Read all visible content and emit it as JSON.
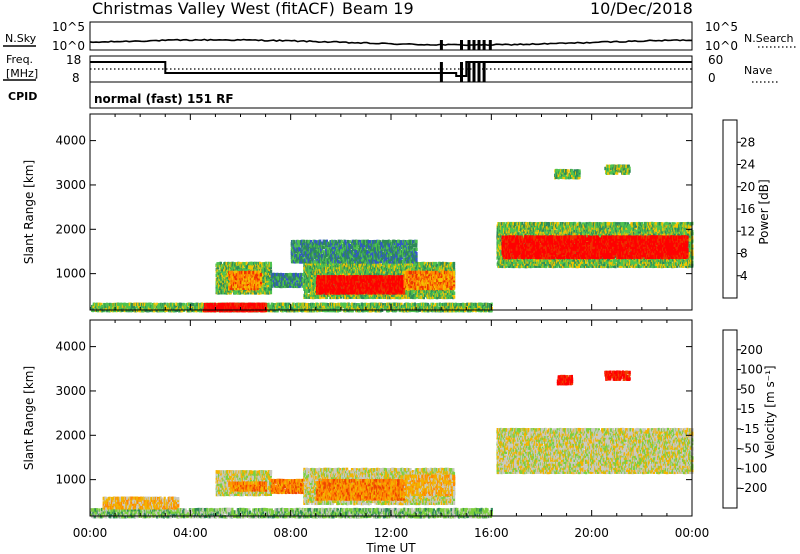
{
  "header": {
    "station": "Christmas Valley West",
    "mode": "(fitACF)",
    "beam": "Beam 19",
    "date": "10/Dec/2018"
  },
  "top_panels": {
    "nsky_label": "N.Sky",
    "nsky_ticks": [
      "10^5",
      "10^0"
    ],
    "nsearch_label": "N.Search",
    "freq_label_line1": "Freq.",
    "freq_label_line2": "[MHz]",
    "freq_ticks": [
      "18",
      "8"
    ],
    "nave_ticks": [
      "60",
      "0"
    ],
    "nave_label": "Nave",
    "cpid_label": "CPID",
    "cpid_value": "normal (fast) 151 RF"
  },
  "chart_data": [
    {
      "type": "heatmap",
      "name": "power",
      "ylabel": "Slant Range [km]",
      "yticks": [
        1000,
        2000,
        3000,
        4000
      ],
      "ylim": [
        180,
        4600
      ],
      "xlim_hours": [
        0,
        24
      ],
      "colorbar_label": "Power [dB]",
      "colorbar_ticks": [
        "4",
        "8",
        "12",
        "16",
        "20",
        "24",
        "28"
      ],
      "colorbar_colors": [
        "#0000ff",
        "#3355cc",
        "#2f8a57",
        "#4fc24f",
        "#f2c400",
        "#ff8800",
        "#ee3300",
        "#ff0000"
      ],
      "regions": [
        {
          "t0": 0.0,
          "t1": 16.0,
          "r0": 200,
          "r1": 380,
          "level": 3
        },
        {
          "t0": 4.5,
          "t1": 7.0,
          "r0": 200,
          "r1": 380,
          "level": 7
        },
        {
          "t0": 5.0,
          "t1": 7.2,
          "r0": 600,
          "r1": 1300,
          "level": 3
        },
        {
          "t0": 5.5,
          "t1": 6.8,
          "r0": 700,
          "r1": 1100,
          "level": 5
        },
        {
          "t0": 7.2,
          "t1": 9.0,
          "r0": 750,
          "r1": 1050,
          "level": 2
        },
        {
          "t0": 8.5,
          "t1": 14.5,
          "r0": 500,
          "r1": 1300,
          "level": 3
        },
        {
          "t0": 9.0,
          "t1": 12.5,
          "r0": 600,
          "r1": 1000,
          "level": 7
        },
        {
          "t0": 12.5,
          "t1": 14.5,
          "r0": 700,
          "r1": 1100,
          "level": 5
        },
        {
          "t0": 8.0,
          "t1": 13.0,
          "r0": 1300,
          "r1": 1800,
          "level": 2
        },
        {
          "t0": 16.2,
          "t1": 24.0,
          "r0": 1200,
          "r1": 2200,
          "level": 3
        },
        {
          "t0": 16.4,
          "t1": 23.8,
          "r0": 1400,
          "r1": 1900,
          "level": 7
        },
        {
          "t0": 18.5,
          "t1": 19.5,
          "r0": 3200,
          "r1": 3400,
          "level": 3
        },
        {
          "t0": 20.5,
          "t1": 21.5,
          "r0": 3300,
          "r1": 3500,
          "level": 3
        }
      ]
    },
    {
      "type": "heatmap",
      "name": "velocity",
      "ylabel": "Slant Range [km]",
      "yticks": [
        1000,
        2000,
        3000,
        4000
      ],
      "ylim": [
        180,
        4600
      ],
      "xlim_hours": [
        0,
        24
      ],
      "xticks": [
        "00:00",
        "04:00",
        "08:00",
        "12:00",
        "16:00",
        "20:00",
        "00:00"
      ],
      "xlabel": "Time UT",
      "colorbar_label": "Velocity [m s⁻¹]",
      "colorbar_ticks": [
        "200",
        "100",
        "50",
        "15",
        "-15",
        "-50",
        "-100",
        "-200"
      ],
      "colorbar_colors": [
        "#2020a0",
        "#3355cc",
        "#2f8a57",
        "#7ccf3f",
        "#c8c8c0",
        "#f2b400",
        "#ff8800",
        "#ee4400",
        "#ff0000"
      ],
      "regions": [
        {
          "t0": 0.0,
          "t1": 16.0,
          "r0": 200,
          "r1": 400,
          "level": 3
        },
        {
          "t0": 0.5,
          "t1": 3.5,
          "r0": 400,
          "r1": 650,
          "level": 5
        },
        {
          "t0": 5.0,
          "t1": 7.2,
          "r0": 700,
          "r1": 1250,
          "level": 4
        },
        {
          "t0": 5.5,
          "t1": 7.0,
          "r0": 800,
          "r1": 1000,
          "level": 6
        },
        {
          "t0": 7.2,
          "t1": 9.0,
          "r0": 750,
          "r1": 1050,
          "level": 6
        },
        {
          "t0": 8.5,
          "t1": 14.5,
          "r0": 500,
          "r1": 1300,
          "level": 4
        },
        {
          "t0": 9.0,
          "t1": 12.5,
          "r0": 600,
          "r1": 1050,
          "level": 6
        },
        {
          "t0": 12.5,
          "t1": 14.5,
          "r0": 700,
          "r1": 1150,
          "level": 5
        },
        {
          "t0": 16.2,
          "t1": 24.0,
          "r0": 1200,
          "r1": 2200,
          "level": 4
        },
        {
          "t0": 18.6,
          "t1": 19.2,
          "r0": 3200,
          "r1": 3400,
          "level": 8
        },
        {
          "t0": 20.5,
          "t1": 21.5,
          "r0": 3300,
          "r1": 3500,
          "level": 8
        }
      ]
    }
  ]
}
